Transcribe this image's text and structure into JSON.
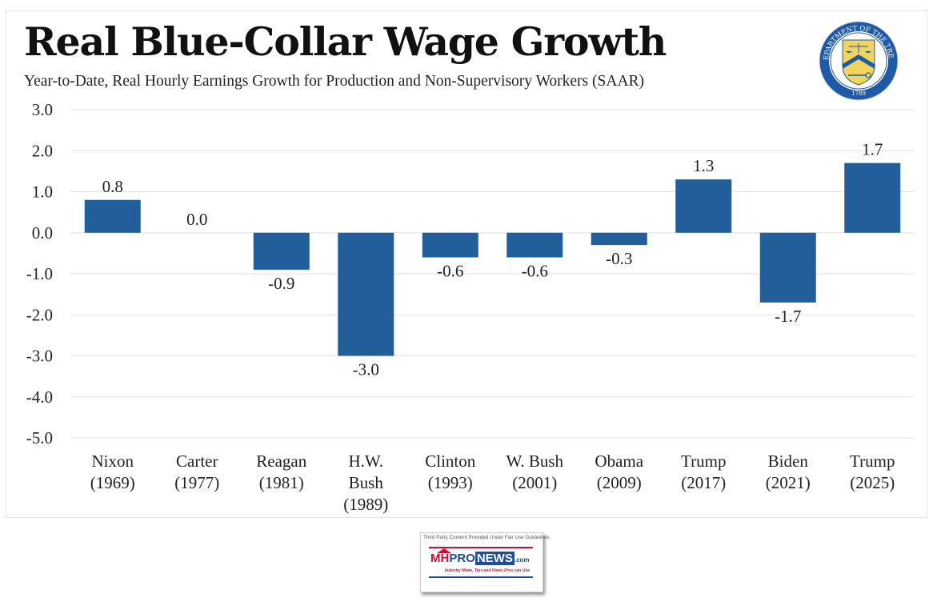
{
  "header": {
    "title": "Real Blue-Collar Wage Growth",
    "subtitle": "Year-to-Date, Real Hourly Earnings Growth for Production and Non-Supervisory Workers (SAAR)"
  },
  "seal": {
    "icon": "treasury-seal-icon",
    "ring_text": "THE DEPARTMENT OF THE TREASURY",
    "year": "1789",
    "colors": {
      "ring": "#1f5aa6",
      "shield": "#f2d45c",
      "chevron": "#1f5aa6"
    }
  },
  "watermark": {
    "note": "Third Party Content Provided Under Fair Use Guidelines.",
    "brand_mh": "MH",
    "brand_pro": "PRO",
    "brand_news": "NEWS",
    "brand_com": ".com",
    "tagline": "Industry News, Tips and Views Pros can Use",
    "colors": {
      "red": "#c8102e",
      "blue": "#1f4e9c"
    }
  },
  "chart_data": {
    "type": "bar",
    "title": "Real Blue-Collar Wage Growth",
    "subtitle": "Year-to-Date, Real Hourly Earnings Growth for Production and Non-Supervisory Workers (SAAR)",
    "xlabel": "",
    "ylabel": "",
    "categories": [
      [
        "Nixon",
        "(1969)"
      ],
      [
        "Carter",
        "(1977)"
      ],
      [
        "Reagan",
        "(1981)"
      ],
      [
        "H.W.",
        "Bush",
        "(1989)"
      ],
      [
        "Clinton",
        "(1993)"
      ],
      [
        "W. Bush",
        "(2001)"
      ],
      [
        "Obama",
        "(2009)"
      ],
      [
        "Trump",
        "(2017)"
      ],
      [
        "Biden",
        "(2021)"
      ],
      [
        "Trump",
        "(2025)"
      ]
    ],
    "values": [
      0.8,
      0.0,
      -0.9,
      -3.0,
      -0.6,
      -0.6,
      -0.3,
      1.3,
      -1.7,
      1.7
    ],
    "data_labels": [
      "0.8",
      "0.0",
      "-0.9",
      "-3.0",
      "-0.6",
      "-0.6",
      "-0.3",
      "1.3",
      "-1.7",
      "1.7"
    ],
    "ylim": [
      -5.0,
      3.0
    ],
    "yticks": [
      3.0,
      2.0,
      1.0,
      0.0,
      -1.0,
      -2.0,
      -3.0,
      -4.0,
      -5.0
    ],
    "ytick_labels": [
      "3.0",
      "2.0",
      "1.0",
      "0.0",
      "-1.0",
      "-2.0",
      "-3.0",
      "-4.0",
      "-5.0"
    ],
    "grid": true,
    "legend": "none",
    "colors": {
      "bar": "#225e99",
      "grid": "#e2e2e2"
    }
  }
}
